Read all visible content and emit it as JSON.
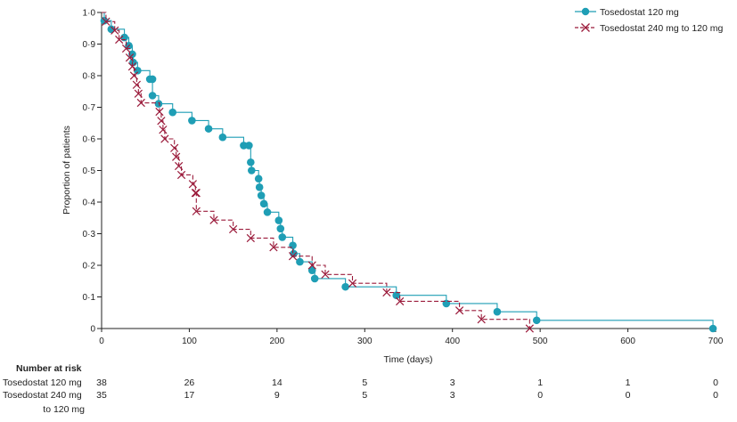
{
  "chart_data": {
    "type": "line",
    "title": "",
    "xlabel": "Time (days)",
    "ylabel": "Proportion of patients",
    "xlim": [
      0,
      700
    ],
    "ylim": [
      0,
      1.0
    ],
    "x_ticks": [
      "0",
      "100",
      "200",
      "300",
      "400",
      "500",
      "600",
      "700"
    ],
    "x_tick_values": [
      0,
      100,
      200,
      300,
      400,
      500,
      600,
      700
    ],
    "y_ticks": [
      "0",
      "0·1",
      "0·2",
      "0·3",
      "0·4",
      "0·5",
      "0·6",
      "0·7",
      "0·8",
      "0·9",
      "1·0"
    ],
    "y_tick_values": [
      0,
      0.1,
      0.2,
      0.3,
      0.4,
      0.5,
      0.6,
      0.7,
      0.8,
      0.9,
      1.0
    ],
    "grid": false,
    "legend_position": "top-right",
    "series": [
      {
        "name": "Tosedostat 120 mg",
        "color": "#1f9eb5",
        "marker": "circle",
        "style": "solid",
        "steps": [
          [
            0,
            1.0
          ],
          [
            3,
            0.974
          ],
          [
            11,
            0.947
          ],
          [
            26,
            0.921
          ],
          [
            31,
            0.895
          ],
          [
            35,
            0.868
          ],
          [
            36,
            0.842
          ],
          [
            41,
            0.816
          ],
          [
            55,
            0.789
          ],
          [
            58,
            0.737
          ],
          [
            65,
            0.711
          ],
          [
            81,
            0.684
          ],
          [
            103,
            0.658
          ],
          [
            122,
            0.632
          ],
          [
            138,
            0.605
          ],
          [
            162,
            0.579
          ],
          [
            170,
            0.526
          ],
          [
            171,
            0.5
          ],
          [
            179,
            0.474
          ],
          [
            180,
            0.447
          ],
          [
            182,
            0.421
          ],
          [
            185,
            0.395
          ],
          [
            189,
            0.368
          ],
          [
            202,
            0.342
          ],
          [
            204,
            0.316
          ],
          [
            206,
            0.289
          ],
          [
            218,
            0.263
          ],
          [
            219,
            0.237
          ],
          [
            226,
            0.211
          ],
          [
            240,
            0.184
          ],
          [
            243,
            0.158
          ],
          [
            278,
            0.132
          ],
          [
            336,
            0.105
          ],
          [
            393,
            0.079
          ],
          [
            451,
            0.053
          ],
          [
            496,
            0.026
          ],
          [
            697,
            0.0
          ]
        ],
        "markers": [
          [
            3,
            0.974
          ],
          [
            11,
            0.947
          ],
          [
            26,
            0.921
          ],
          [
            31,
            0.895
          ],
          [
            35,
            0.868
          ],
          [
            36,
            0.842
          ],
          [
            41,
            0.816
          ],
          [
            55,
            0.789
          ],
          [
            58,
            0.789
          ],
          [
            58,
            0.737
          ],
          [
            65,
            0.711
          ],
          [
            81,
            0.684
          ],
          [
            103,
            0.658
          ],
          [
            122,
            0.632
          ],
          [
            138,
            0.605
          ],
          [
            162,
            0.579
          ],
          [
            168,
            0.579
          ],
          [
            170,
            0.526
          ],
          [
            171,
            0.5
          ],
          [
            179,
            0.474
          ],
          [
            180,
            0.447
          ],
          [
            182,
            0.421
          ],
          [
            185,
            0.395
          ],
          [
            189,
            0.368
          ],
          [
            202,
            0.342
          ],
          [
            204,
            0.316
          ],
          [
            206,
            0.289
          ],
          [
            218,
            0.263
          ],
          [
            219,
            0.237
          ],
          [
            226,
            0.211
          ],
          [
            240,
            0.184
          ],
          [
            243,
            0.158
          ],
          [
            278,
            0.132
          ],
          [
            336,
            0.105
          ],
          [
            393,
            0.079
          ],
          [
            451,
            0.053
          ],
          [
            496,
            0.026
          ],
          [
            697,
            0.0
          ]
        ]
      },
      {
        "name": "Tosedostat 240 mg to 120 mg",
        "color": "#9b1b3b",
        "marker": "cross",
        "style": "dashed",
        "steps": [
          [
            0,
            1.0
          ],
          [
            5,
            0.971
          ],
          [
            15,
            0.943
          ],
          [
            20,
            0.914
          ],
          [
            28,
            0.886
          ],
          [
            32,
            0.857
          ],
          [
            35,
            0.829
          ],
          [
            37,
            0.8
          ],
          [
            40,
            0.771
          ],
          [
            42,
            0.743
          ],
          [
            45,
            0.714
          ],
          [
            66,
            0.686
          ],
          [
            68,
            0.657
          ],
          [
            70,
            0.629
          ],
          [
            72,
            0.6
          ],
          [
            83,
            0.571
          ],
          [
            85,
            0.543
          ],
          [
            88,
            0.514
          ],
          [
            91,
            0.486
          ],
          [
            104,
            0.457
          ],
          [
            107,
            0.429
          ],
          [
            108,
            0.371
          ],
          [
            128,
            0.343
          ],
          [
            150,
            0.314
          ],
          [
            170,
            0.286
          ],
          [
            196,
            0.257
          ],
          [
            218,
            0.229
          ],
          [
            240,
            0.2
          ],
          [
            255,
            0.171
          ],
          [
            286,
            0.143
          ],
          [
            325,
            0.114
          ],
          [
            340,
            0.086
          ],
          [
            408,
            0.057
          ],
          [
            433,
            0.029
          ],
          [
            488,
            0.0
          ]
        ],
        "markers": [
          [
            5,
            0.971
          ],
          [
            15,
            0.943
          ],
          [
            20,
            0.914
          ],
          [
            28,
            0.886
          ],
          [
            32,
            0.857
          ],
          [
            35,
            0.829
          ],
          [
            37,
            0.8
          ],
          [
            40,
            0.771
          ],
          [
            42,
            0.743
          ],
          [
            45,
            0.714
          ],
          [
            66,
            0.686
          ],
          [
            68,
            0.657
          ],
          [
            70,
            0.629
          ],
          [
            72,
            0.6
          ],
          [
            83,
            0.571
          ],
          [
            85,
            0.543
          ],
          [
            88,
            0.514
          ],
          [
            91,
            0.486
          ],
          [
            104,
            0.457
          ],
          [
            107,
            0.429
          ],
          [
            108,
            0.429
          ],
          [
            108,
            0.371
          ],
          [
            128,
            0.343
          ],
          [
            150,
            0.314
          ],
          [
            170,
            0.286
          ],
          [
            196,
            0.257
          ],
          [
            218,
            0.229
          ],
          [
            240,
            0.2
          ],
          [
            255,
            0.171
          ],
          [
            286,
            0.143
          ],
          [
            325,
            0.114
          ],
          [
            340,
            0.086
          ],
          [
            408,
            0.057
          ],
          [
            433,
            0.029
          ],
          [
            488,
            0.0
          ]
        ]
      }
    ],
    "number_at_risk": {
      "header": "Number at risk",
      "rows": [
        {
          "label": [
            "Tosedostat 120 mg"
          ],
          "values": [
            "38",
            "26",
            "14",
            "5",
            "3",
            "1",
            "1",
            "0"
          ]
        },
        {
          "label": [
            "Tosedostat 240 mg",
            "to 120 mg"
          ],
          "values": [
            "35",
            "17",
            "9",
            "5",
            "3",
            "0",
            "0",
            "0"
          ]
        }
      ]
    }
  }
}
